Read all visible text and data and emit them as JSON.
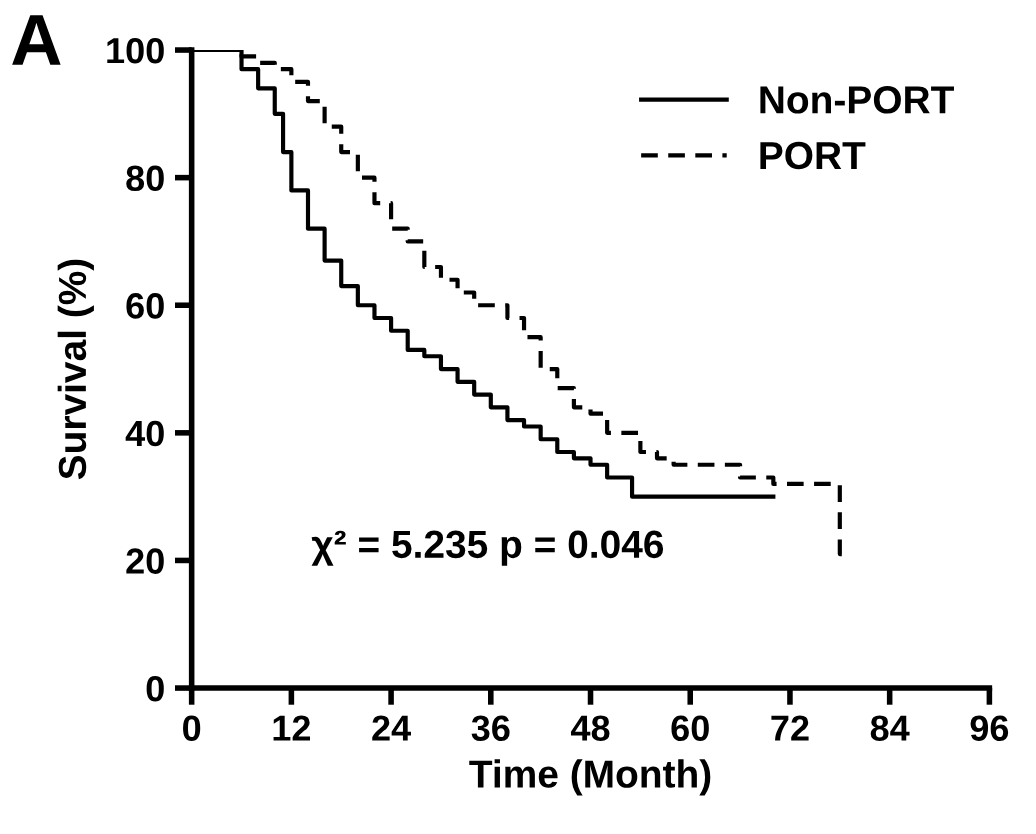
{
  "chart_data": {
    "type": "step",
    "xlabel": "Time (Month)",
    "ylabel": "Survival (%)",
    "xlim": [
      0,
      96
    ],
    "ylim": [
      0,
      100
    ],
    "xticks": [
      0,
      12,
      24,
      36,
      48,
      60,
      72,
      84,
      96
    ],
    "yticks": [
      0,
      20,
      40,
      60,
      80,
      100
    ],
    "grid": false,
    "legend": "top right",
    "annotations": [
      "A",
      "χ² = 5.235 p = 0.046"
    ],
    "series": [
      {
        "name": "Non-PORT",
        "color": "#000000",
        "line_style": "solid",
        "x": [
          0,
          4,
          6,
          8,
          10,
          11,
          12,
          14,
          16,
          18,
          20,
          22,
          24,
          26,
          28,
          30,
          32,
          34,
          36,
          38,
          40,
          42,
          44,
          46,
          48,
          50,
          53,
          70
        ],
        "values": [
          100,
          100,
          97,
          94,
          90,
          84,
          78,
          72,
          67,
          63,
          60,
          58,
          56,
          53,
          52,
          50,
          48,
          46,
          44,
          42,
          41,
          39,
          37,
          36,
          35,
          33,
          30,
          30
        ]
      },
      {
        "name": "PORT",
        "color": "#000000",
        "line_style": "dashed",
        "x": [
          0,
          4,
          6,
          8,
          10,
          12,
          14,
          16,
          18,
          20,
          22,
          24,
          26,
          28,
          30,
          32,
          34,
          38,
          40,
          42,
          44,
          46,
          48,
          50,
          54,
          56,
          58,
          66,
          70,
          78,
          79
        ],
        "values": [
          100,
          100,
          99,
          98,
          97,
          95,
          92,
          88,
          84,
          80,
          76,
          72,
          70,
          66,
          64,
          62,
          60,
          58,
          55,
          50,
          47,
          44,
          43,
          40,
          37,
          36,
          35,
          33,
          32,
          21,
          21
        ]
      }
    ]
  }
}
